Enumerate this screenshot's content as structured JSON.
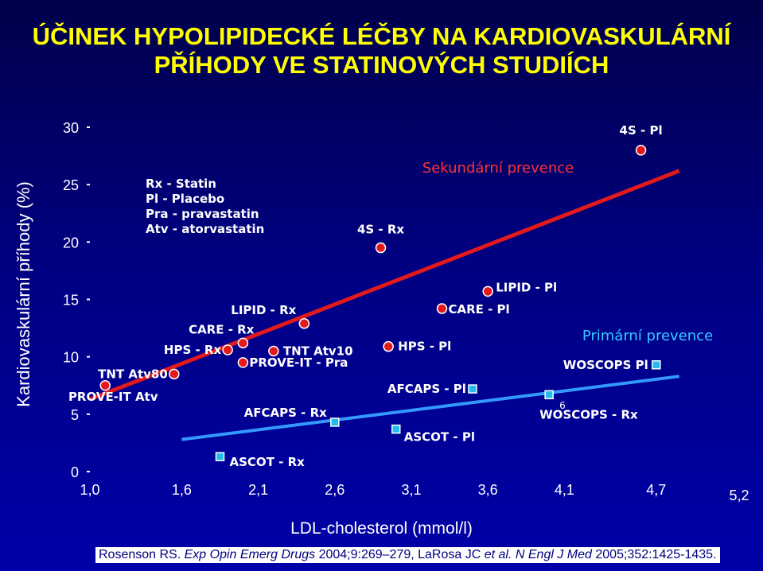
{
  "title_lines": [
    "ÚČINEK HYPOLIPIDECKÉ LÉČBY NA KARDIOVASKULÁRNÍ",
    "PŘÍHODY VE STATINOVÝCH STUDIÍCH"
  ],
  "legend_lines": [
    "Rx - Statin",
    "Pl  - Placebo",
    "Pra - pravastatin",
    "Atv - atorvastatin"
  ],
  "citation": {
    "authors": "Rosenson RS. ",
    "journal1": "Exp Opin Emerg Drugs",
    "mid": " 2004;9:269–279, LaRosa JC ",
    "etal": "et al.",
    "space": " ",
    "journal2": "N Engl J Med",
    "end": " 2005;352:1425-1435."
  },
  "colors": {
    "secondary_line": "#e31a1c",
    "primary_line": "#3399ff",
    "title": "#ffff00",
    "secondary_text": "#ff3333",
    "primary_text": "#33ccff",
    "secondary_marker": "#e31a1c",
    "primary_marker": "#22bbee"
  },
  "chart_data": {
    "type": "scatter",
    "xlabel": "LDL-cholesterol (mmol/l)",
    "ylabel": "Kardiovaskulární příhody (%)",
    "x_tick_labels": [
      "1,0",
      "1,6",
      "2,1",
      "2,6",
      "3,1",
      "3,6",
      "4,1",
      "4,7",
      "5,2"
    ],
    "x_tick_values": [
      1.0,
      1.6,
      2.1,
      2.6,
      3.1,
      3.6,
      4.1,
      4.7,
      5.2
    ],
    "y_tick_labels": [
      "0",
      "5",
      "10",
      "15",
      "20",
      "25",
      "30"
    ],
    "y_tick_values": [
      0,
      5,
      10,
      15,
      20,
      25,
      30
    ],
    "xlim": [
      1.0,
      5.2
    ],
    "ylim": [
      0,
      30
    ],
    "series": [
      {
        "name": "Sekundární prevence",
        "marker": "circle",
        "points": [
          {
            "label": "4S - Pl",
            "x": 4.6,
            "y": 28.0
          },
          {
            "label": "4S - Rx",
            "x": 2.9,
            "y": 19.5
          },
          {
            "label": "LIPID - Pl",
            "x": 3.6,
            "y": 15.7
          },
          {
            "label": "CARE - Pl",
            "x": 3.3,
            "y": 14.2
          },
          {
            "label": "LIPID - Rx",
            "x": 2.4,
            "y": 12.9
          },
          {
            "label": "CARE - Rx",
            "x": 2.0,
            "y": 11.2
          },
          {
            "label": "HPS - Rx",
            "x": 1.9,
            "y": 10.6
          },
          {
            "label": "TNT  Atv10",
            "x": 2.2,
            "y": 10.5
          },
          {
            "label": "HPS - Pl",
            "x": 2.95,
            "y": 10.9
          },
          {
            "label": "PROVE-IT - Pra",
            "x": 2.0,
            "y": 9.5
          },
          {
            "label": "TNT  Atv80",
            "x": 1.55,
            "y": 8.5
          },
          {
            "label": "PROVE-IT  Atv",
            "x": 1.1,
            "y": 7.5
          }
        ],
        "trend": [
          [
            1.0,
            6.3
          ],
          [
            4.85,
            26.2
          ]
        ]
      },
      {
        "name": "Primární prevence",
        "marker": "square",
        "points": [
          {
            "label": "WOSCOPS  Pl",
            "x": 4.7,
            "y": 9.3
          },
          {
            "label": "WOSCOPS - Rx",
            "x": 4.0,
            "y": 6.7
          },
          {
            "label": "AFCAPS - Pl",
            "x": 3.5,
            "y": 7.2
          },
          {
            "label": "AFCAPS - Rx",
            "x": 2.6,
            "y": 4.3
          },
          {
            "label": "ASCOT - Pl",
            "x": 3.0,
            "y": 3.7
          },
          {
            "label": "ASCOT - Rx",
            "x": 1.85,
            "y": 1.3
          }
        ],
        "trend": [
          [
            1.6,
            2.8
          ],
          [
            4.85,
            8.3
          ]
        ]
      }
    ],
    "annotations": [
      {
        "text": "Sekundární prevence"
      },
      {
        "text": "Primární prevence"
      },
      {
        "text": "6"
      }
    ]
  }
}
